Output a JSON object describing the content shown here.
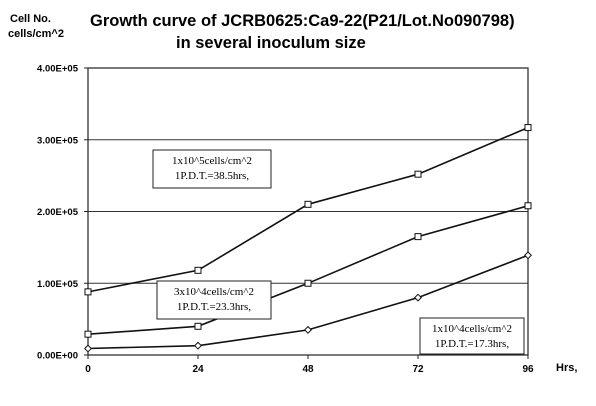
{
  "chart_data": {
    "type": "line",
    "title_line1": "Growth curve of JCRB0625:Ca9-22(P21/Lot.No090798)",
    "title_line2": "in several inoculum size",
    "ylabel_line1": "Cell No.",
    "ylabel_line2": "cells/cm^2",
    "xlabel": "Hrs,",
    "x": [
      0,
      24,
      48,
      72,
      96
    ],
    "xticks": [
      "0",
      "24",
      "48",
      "72",
      "96"
    ],
    "yticks": [
      "0.00E+00",
      "1.00E+05",
      "2.00E+05",
      "3.00E+05",
      "4.00E+05"
    ],
    "ytick_values": [
      0,
      100000,
      200000,
      300000,
      400000
    ],
    "xlim": [
      0,
      96
    ],
    "ylim": [
      0,
      400000
    ],
    "grid": "horizontal",
    "series": [
      {
        "marker": "square",
        "values": [
          88000,
          118000,
          210000,
          252000,
          317000
        ],
        "annotation": [
          "1x10^5cells/cm^2",
          "1P.D.T.=38.5hrs,"
        ]
      },
      {
        "marker": "square",
        "values": [
          29000,
          40000,
          100000,
          165000,
          208000
        ],
        "annotation": [
          "3x10^4cells/cm^2",
          "1P.D.T.=23.3hrs,"
        ]
      },
      {
        "marker": "diamond",
        "values": [
          9000,
          13000,
          35000,
          80000,
          139000
        ],
        "annotation": [
          "1x10^4cells/cm^2",
          "1P.D.T.=17.3hrs,"
        ]
      }
    ]
  }
}
